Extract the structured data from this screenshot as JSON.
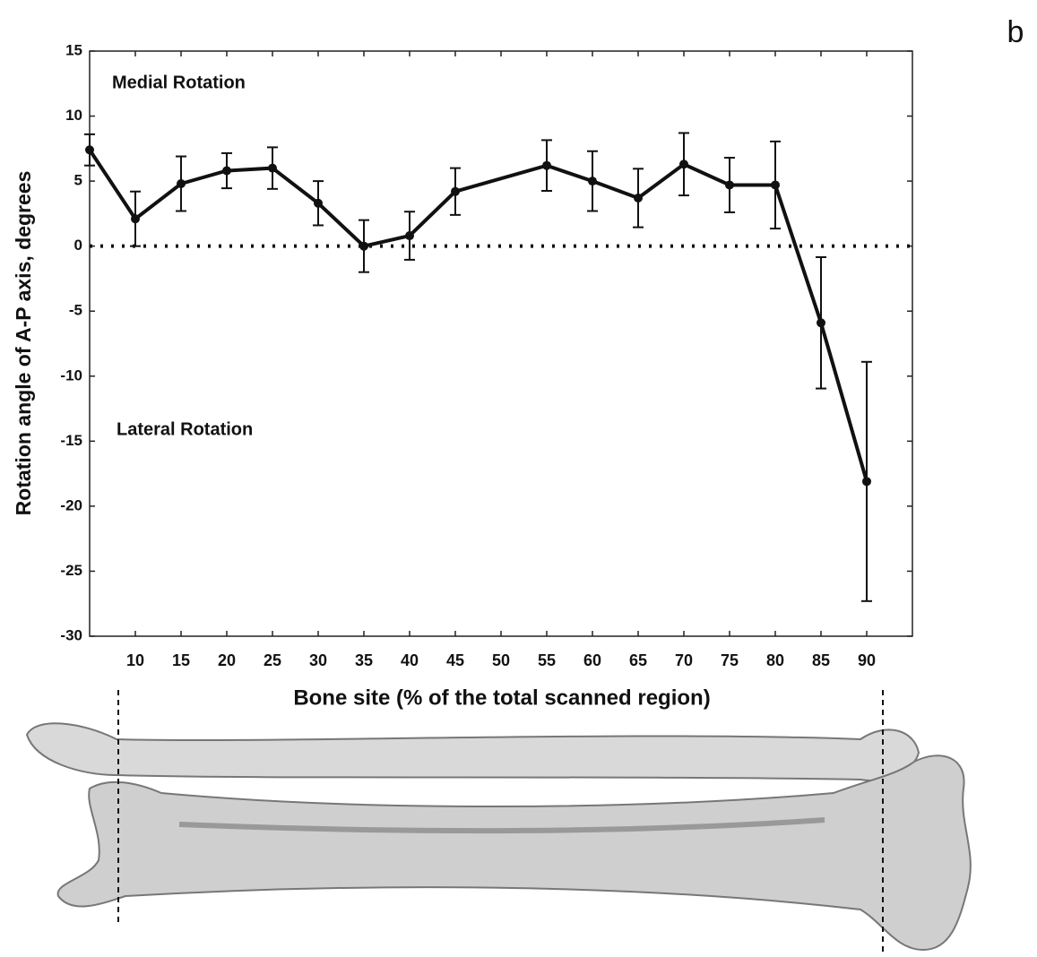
{
  "chart_data": {
    "type": "line",
    "panel_label": "b",
    "xlabel": "Bone site (% of the total scanned region)",
    "ylabel": "Rotation angle of A-P axis, degrees",
    "annotations": [
      "Medial Rotation",
      "Lateral Rotation"
    ],
    "x": [
      5,
      10,
      15,
      20,
      25,
      30,
      35,
      40,
      45,
      55,
      60,
      65,
      70,
      75,
      80,
      85,
      90
    ],
    "values": [
      7.4,
      2.1,
      4.8,
      5.8,
      6.0,
      3.3,
      0.0,
      0.8,
      4.2,
      6.2,
      5.0,
      3.7,
      6.3,
      4.7,
      4.7,
      -5.9,
      -18.1
    ],
    "errors": [
      1.2,
      2.1,
      2.1,
      1.35,
      1.6,
      1.7,
      2.0,
      1.85,
      1.8,
      1.95,
      2.3,
      2.25,
      2.4,
      2.1,
      3.35,
      5.05,
      9.2
    ],
    "color": "#111111",
    "xlim": [
      5,
      95
    ],
    "ylim": [
      -30,
      15
    ],
    "xticks": [
      10,
      15,
      20,
      25,
      30,
      35,
      40,
      45,
      50,
      55,
      60,
      65,
      70,
      75,
      80,
      85,
      90
    ],
    "yticks": [
      -30,
      -25,
      -20,
      -15,
      -10,
      -5,
      0,
      5,
      10,
      15
    ],
    "reference_line": 0,
    "grid": false
  }
}
